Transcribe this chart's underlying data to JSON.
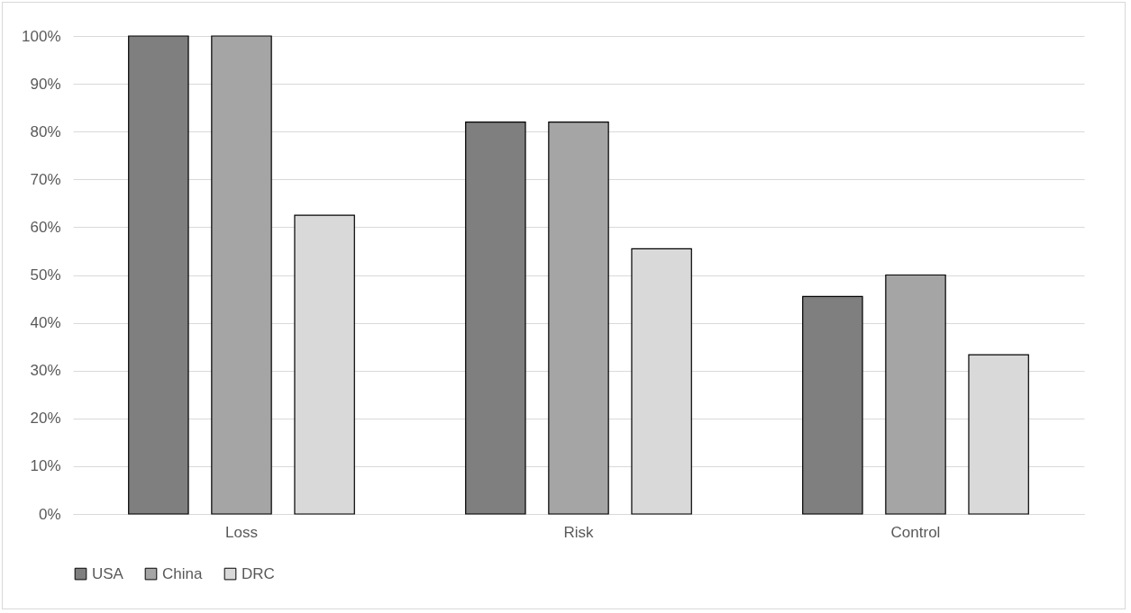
{
  "chart_data": {
    "type": "bar",
    "categories": [
      "Loss",
      "Risk",
      "Control"
    ],
    "series": [
      {
        "name": "USA",
        "color": "#7f7f7f",
        "values": [
          100,
          82,
          45.5
        ]
      },
      {
        "name": "China",
        "color": "#a5a5a5",
        "values": [
          100,
          82,
          50
        ]
      },
      {
        "name": "DRC",
        "color": "#d9d9d9",
        "values": [
          62.5,
          55.5,
          33.3
        ]
      }
    ],
    "ylim": [
      0,
      100
    ],
    "yticks": [
      {
        "value": 0,
        "label": "0%"
      },
      {
        "value": 10,
        "label": "10%"
      },
      {
        "value": 20,
        "label": "20%"
      },
      {
        "value": 30,
        "label": "30%"
      },
      {
        "value": 40,
        "label": "40%"
      },
      {
        "value": 50,
        "label": "50%"
      },
      {
        "value": 60,
        "label": "60%"
      },
      {
        "value": 70,
        "label": "70%"
      },
      {
        "value": 80,
        "label": "80%"
      },
      {
        "value": 90,
        "label": "90%"
      },
      {
        "value": 100,
        "label": "100%"
      }
    ],
    "grid": "y",
    "legend": "bottom"
  }
}
